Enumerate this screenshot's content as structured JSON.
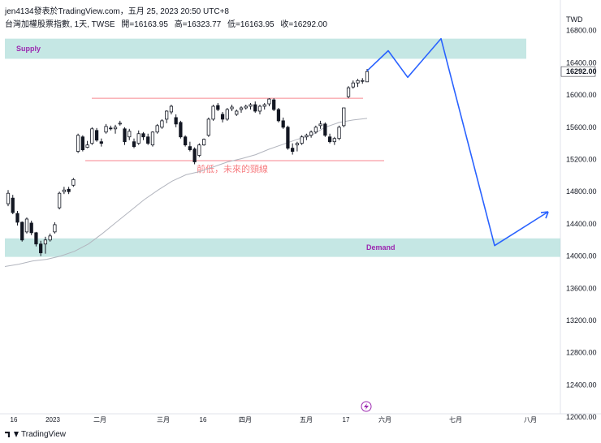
{
  "header": {
    "publisher_line": "jen4134發表於TradingView.com，五月 25, 2023 20:50 UTC+8",
    "symbol_title": "台灣加權股票指數, 1天, TWSE",
    "ohlc": [
      "開=16163.95",
      "高=16323.77",
      "低=16163.95",
      "收=16292.00"
    ]
  },
  "footer": {
    "brand": "TradingView"
  },
  "colors": {
    "zone_fill": "#b2dfdb",
    "zone_label": "#9c27b0",
    "horizontal_line": "#f23645",
    "annotation_text": "#f77c80",
    "projection": "#2962ff",
    "moving_average": "#b2b5be",
    "candle": "#131722"
  },
  "chart_data": {
    "type": "candlestick",
    "currency": "TWD",
    "ylim": [
      11800,
      17200
    ],
    "y_ticks": [
      "16800.00",
      "16400.00",
      "16000.00",
      "15600.00",
      "15200.00",
      "14800.00",
      "14400.00",
      "14000.00",
      "13600.00",
      "13200.00",
      "12800.00",
      "12400.00",
      "12000.00"
    ],
    "last_price": "16292.00",
    "x_tick_labels": [
      "16",
      "2023",
      "二月",
      "三月",
      "16",
      "四月",
      "五月",
      "17",
      "六月",
      "七月",
      "八月"
    ],
    "zones": [
      {
        "label": "Supply",
        "from": 16450,
        "to": 16700
      },
      {
        "label": "Demand",
        "from": 13990,
        "to": 14220
      }
    ],
    "horizontal_lines": [
      15960,
      15185
    ],
    "annotation": "前低，未來的頸線",
    "projection_path": [
      [
        16300,
        16300
      ],
      [
        16550,
        16550
      ],
      [
        16220,
        16220
      ],
      [
        16700,
        16700
      ],
      [
        14130,
        14130
      ],
      [
        14550,
        14550
      ]
    ],
    "candles": [
      {
        "o": 14650,
        "h": 14820,
        "l": 14620,
        "c": 14780
      },
      {
        "o": 14720,
        "h": 14760,
        "l": 14520,
        "c": 14540
      },
      {
        "o": 14530,
        "h": 14560,
        "l": 14380,
        "c": 14420
      },
      {
        "o": 14420,
        "h": 14430,
        "l": 14180,
        "c": 14200
      },
      {
        "o": 14300,
        "h": 14480,
        "l": 14280,
        "c": 14460
      },
      {
        "o": 14410,
        "h": 14440,
        "l": 14260,
        "c": 14290
      },
      {
        "o": 14290,
        "h": 14300,
        "l": 14120,
        "c": 14150
      },
      {
        "o": 14150,
        "h": 14190,
        "l": 14000,
        "c": 14040
      },
      {
        "o": 14150,
        "h": 14240,
        "l": 14030,
        "c": 14200
      },
      {
        "o": 14200,
        "h": 14280,
        "l": 14180,
        "c": 14250
      },
      {
        "o": 14300,
        "h": 14420,
        "l": 14280,
        "c": 14390
      },
      {
        "o": 14600,
        "h": 14800,
        "l": 14580,
        "c": 14780
      },
      {
        "o": 14800,
        "h": 14860,
        "l": 14770,
        "c": 14820
      },
      {
        "o": 14830,
        "h": 14860,
        "l": 14770,
        "c": 14800
      },
      {
        "o": 14880,
        "h": 14970,
        "l": 14860,
        "c": 14950
      },
      {
        "o": 15300,
        "h": 15520,
        "l": 15280,
        "c": 15500
      },
      {
        "o": 15480,
        "h": 15500,
        "l": 15300,
        "c": 15320
      },
      {
        "o": 15350,
        "h": 15430,
        "l": 15340,
        "c": 15380
      },
      {
        "o": 15400,
        "h": 15600,
        "l": 15380,
        "c": 15580
      },
      {
        "o": 15560,
        "h": 15590,
        "l": 15420,
        "c": 15440
      },
      {
        "o": 15420,
        "h": 15460,
        "l": 15360,
        "c": 15400
      },
      {
        "o": 15540,
        "h": 15640,
        "l": 15520,
        "c": 15610
      },
      {
        "o": 15590,
        "h": 15620,
        "l": 15560,
        "c": 15580
      },
      {
        "o": 15580,
        "h": 15630,
        "l": 15520,
        "c": 15600
      },
      {
        "o": 15640,
        "h": 15680,
        "l": 15620,
        "c": 15650
      },
      {
        "o": 15580,
        "h": 15600,
        "l": 15380,
        "c": 15420
      },
      {
        "o": 15480,
        "h": 15580,
        "l": 15440,
        "c": 15550
      },
      {
        "o": 15420,
        "h": 15460,
        "l": 15340,
        "c": 15360
      },
      {
        "o": 15400,
        "h": 15560,
        "l": 15380,
        "c": 15520
      },
      {
        "o": 15520,
        "h": 15540,
        "l": 15440,
        "c": 15480
      },
      {
        "o": 15480,
        "h": 15520,
        "l": 15380,
        "c": 15400
      },
      {
        "o": 15380,
        "h": 15550,
        "l": 15360,
        "c": 15540
      },
      {
        "o": 15540,
        "h": 15640,
        "l": 15520,
        "c": 15620
      },
      {
        "o": 15600,
        "h": 15700,
        "l": 15580,
        "c": 15680
      },
      {
        "o": 15700,
        "h": 15810,
        "l": 15650,
        "c": 15800
      },
      {
        "o": 15790,
        "h": 15880,
        "l": 15760,
        "c": 15860
      },
      {
        "o": 15720,
        "h": 15760,
        "l": 15600,
        "c": 15640
      },
      {
        "o": 15660,
        "h": 15680,
        "l": 15460,
        "c": 15480
      },
      {
        "o": 15480,
        "h": 15500,
        "l": 15360,
        "c": 15380
      },
      {
        "o": 15360,
        "h": 15420,
        "l": 15300,
        "c": 15320
      },
      {
        "o": 15330,
        "h": 15350,
        "l": 15140,
        "c": 15170
      },
      {
        "o": 15250,
        "h": 15400,
        "l": 15230,
        "c": 15380
      },
      {
        "o": 15380,
        "h": 15460,
        "l": 15370,
        "c": 15450
      },
      {
        "o": 15500,
        "h": 15720,
        "l": 15480,
        "c": 15700
      },
      {
        "o": 15700,
        "h": 15880,
        "l": 15680,
        "c": 15860
      },
      {
        "o": 15870,
        "h": 15900,
        "l": 15800,
        "c": 15820
      },
      {
        "o": 15760,
        "h": 15790,
        "l": 15660,
        "c": 15700
      },
      {
        "o": 15700,
        "h": 15840,
        "l": 15680,
        "c": 15820
      },
      {
        "o": 15830,
        "h": 15880,
        "l": 15800,
        "c": 15850
      },
      {
        "o": 15760,
        "h": 15820,
        "l": 15740,
        "c": 15800
      },
      {
        "o": 15820,
        "h": 15860,
        "l": 15780,
        "c": 15840
      },
      {
        "o": 15840,
        "h": 15880,
        "l": 15820,
        "c": 15860
      },
      {
        "o": 15860,
        "h": 15900,
        "l": 15820,
        "c": 15880
      },
      {
        "o": 15880,
        "h": 15920,
        "l": 15780,
        "c": 15800
      },
      {
        "o": 15800,
        "h": 15880,
        "l": 15760,
        "c": 15860
      },
      {
        "o": 15860,
        "h": 15900,
        "l": 15820,
        "c": 15880
      },
      {
        "o": 15890,
        "h": 15960,
        "l": 15860,
        "c": 15950
      },
      {
        "o": 15940,
        "h": 15960,
        "l": 15800,
        "c": 15820
      },
      {
        "o": 15820,
        "h": 15840,
        "l": 15660,
        "c": 15680
      },
      {
        "o": 15680,
        "h": 15720,
        "l": 15580,
        "c": 15600
      },
      {
        "o": 15600,
        "h": 15620,
        "l": 15320,
        "c": 15340
      },
      {
        "o": 15340,
        "h": 15400,
        "l": 15260,
        "c": 15300
      },
      {
        "o": 15380,
        "h": 15420,
        "l": 15300,
        "c": 15400
      },
      {
        "o": 15400,
        "h": 15500,
        "l": 15380,
        "c": 15480
      },
      {
        "o": 15480,
        "h": 15520,
        "l": 15440,
        "c": 15500
      },
      {
        "o": 15500,
        "h": 15560,
        "l": 15470,
        "c": 15540
      },
      {
        "o": 15540,
        "h": 15620,
        "l": 15520,
        "c": 15600
      },
      {
        "o": 15620,
        "h": 15680,
        "l": 15580,
        "c": 15640
      },
      {
        "o": 15640,
        "h": 15660,
        "l": 15480,
        "c": 15500
      },
      {
        "o": 15480,
        "h": 15520,
        "l": 15400,
        "c": 15420
      },
      {
        "o": 15420,
        "h": 15480,
        "l": 15380,
        "c": 15460
      },
      {
        "o": 15460,
        "h": 15620,
        "l": 15440,
        "c": 15600
      },
      {
        "o": 15620,
        "h": 15840,
        "l": 15600,
        "c": 15840
      },
      {
        "o": 15980,
        "h": 16110,
        "l": 15960,
        "c": 16090
      },
      {
        "o": 16100,
        "h": 16180,
        "l": 16080,
        "c": 16150
      },
      {
        "o": 16150,
        "h": 16200,
        "l": 16100,
        "c": 16180
      },
      {
        "o": 16170,
        "h": 16210,
        "l": 16140,
        "c": 16180
      },
      {
        "o": 16163.95,
        "h": 16323.77,
        "l": 16163.95,
        "c": 16292
      }
    ],
    "ma_values": [
      13870,
      13900,
      13940,
      13960,
      14000,
      14060,
      14150,
      14280,
      14420,
      14560,
      14700,
      14820,
      14930,
      15010,
      15050,
      15110,
      15170,
      15210,
      15260,
      15330,
      15390,
      15450,
      15500,
      15600,
      15660,
      15690,
      15710
    ]
  }
}
